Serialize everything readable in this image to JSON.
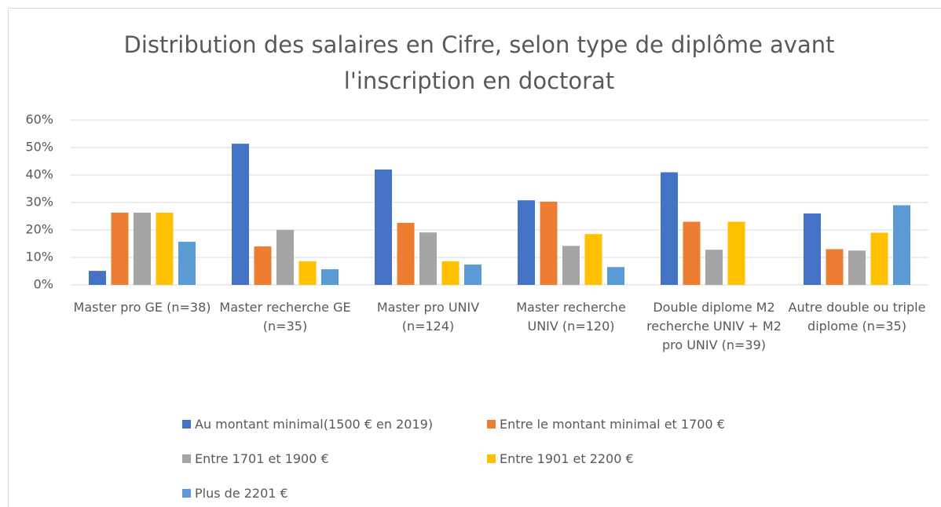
{
  "chart_data": {
    "type": "bar",
    "title": "Distribution des salaires en Cifre, selon type de diplôme avant l'inscription en doctorat",
    "categories": [
      "Master pro GE (n=38)",
      "Master recherche GE (n=35)",
      "Master pro UNIV (n=124)",
      "Master recherche UNIV (n=120)",
      "Double diplome M2 recherche UNIV + M2 pro UNIV (n=39)",
      "Autre double ou triple diplome (n=35)"
    ],
    "series": [
      {
        "name": "Au montant minimal(1500 € en 2019)",
        "color": "#4472c4",
        "values": [
          5.1,
          51.4,
          42,
          30.8,
          41,
          26
        ]
      },
      {
        "name": "Entre le montant minimal et 1700 €",
        "color": "#ed7d31",
        "values": [
          26.3,
          14,
          22.6,
          30.3,
          23,
          13
        ]
      },
      {
        "name": "Entre 1701 et 1900 €",
        "color": "#a5a5a5",
        "values": [
          26.3,
          20,
          19.1,
          14.2,
          12.8,
          12.5
        ]
      },
      {
        "name": "Entre 1901 et 2200 €",
        "color": "#ffc000",
        "values": [
          26.3,
          8.6,
          8.6,
          18.5,
          23,
          19
        ]
      },
      {
        "name": "Plus de 2201 €",
        "color": "#5b9bd5",
        "values": [
          15.7,
          5.7,
          7.4,
          6.5,
          0,
          29
        ]
      }
    ],
    "ylim": [
      0,
      60
    ],
    "yticks": [
      {
        "value": 0,
        "label": "0%"
      },
      {
        "value": 10,
        "label": "10%"
      },
      {
        "value": 20,
        "label": "20%"
      },
      {
        "value": 30,
        "label": "30%"
      },
      {
        "value": 40,
        "label": "40%"
      },
      {
        "value": 50,
        "label": "50%"
      },
      {
        "value": 60,
        "label": "60%"
      }
    ],
    "grid": true
  }
}
